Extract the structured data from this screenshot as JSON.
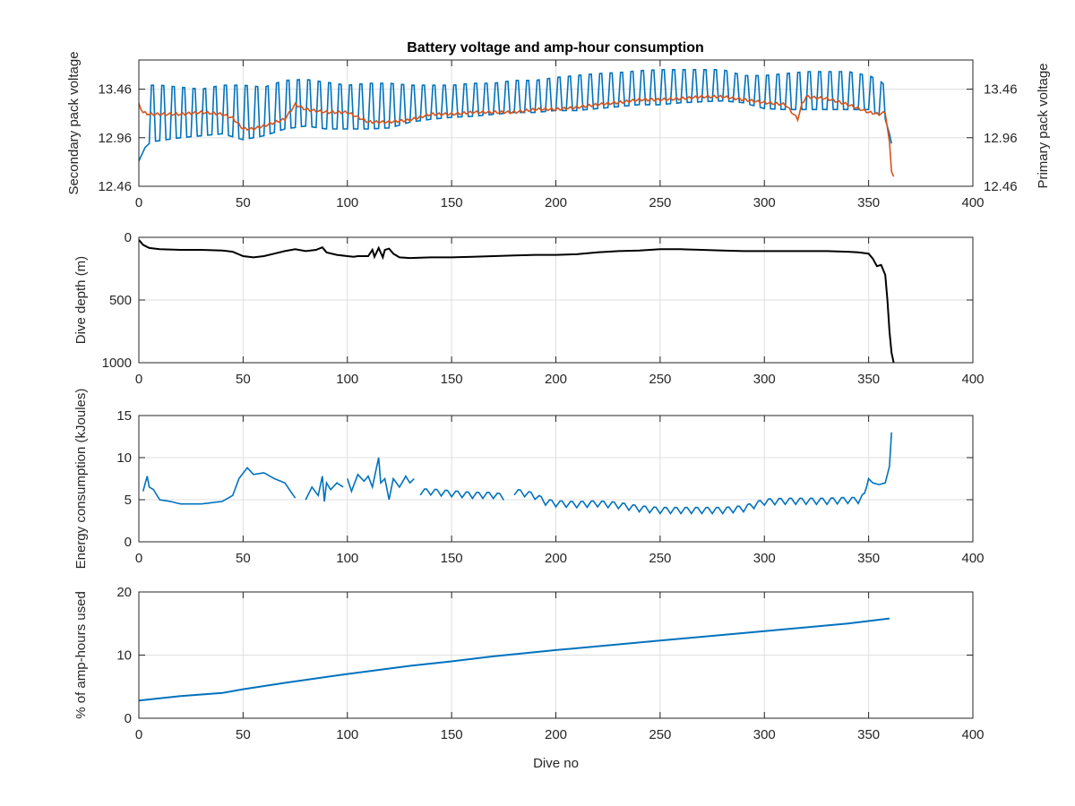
{
  "figure": {
    "title": "Battery voltage and amp-hour consumption"
  },
  "colors": {
    "secondary": "#0072BD",
    "primary": "#D95319",
    "depth": "#000000",
    "energy": "#0072BD",
    "amphours": "#0072BD",
    "grid": "#DFDFDF",
    "axis": "#262626"
  },
  "chart_data": [
    {
      "type": "line",
      "name": "voltage",
      "title": "Battery voltage and amp-hour consumption",
      "xlabel": "",
      "ylabel": "Secondary pack voltage",
      "ylabel_right": "Primary pack voltage",
      "xlim": [
        0,
        400
      ],
      "ylim": [
        12.46,
        13.76
      ],
      "ylim_right": [
        12.46,
        13.76
      ],
      "xticks": [
        0,
        50,
        100,
        150,
        200,
        250,
        300,
        350,
        400
      ],
      "xtick_labels": [
        "0",
        "50",
        "100",
        "150",
        "200",
        "250",
        "300",
        "350",
        "400"
      ],
      "yticks": [
        12.46,
        12.96,
        13.46
      ],
      "ytick_labels": [
        "12.46",
        "12.96",
        "13.46"
      ],
      "yticks_right": [
        12.46,
        12.96,
        13.46
      ],
      "ytick_labels_right": [
        "12.46",
        "12.96",
        "13.46"
      ],
      "grid": true,
      "series": [
        {
          "axis": "left",
          "color": "#0072BD",
          "x": [
            0,
            3,
            6,
            10,
            20,
            30,
            40,
            50,
            60,
            70,
            80,
            90,
            100,
            110,
            120,
            130,
            140,
            150,
            160,
            170,
            180,
            190,
            200,
            210,
            220,
            230,
            240,
            250,
            260,
            270,
            280,
            290,
            300,
            310,
            320,
            330,
            340,
            350,
            355,
            358,
            360,
            361
          ],
          "baseline": [
            12.72,
            12.86,
            12.92,
            12.93,
            12.96,
            12.98,
            13.0,
            12.94,
            12.98,
            13.05,
            13.08,
            13.05,
            13.05,
            13.05,
            13.06,
            13.12,
            13.15,
            13.17,
            13.18,
            13.2,
            13.22,
            13.22,
            13.24,
            13.24,
            13.26,
            13.28,
            13.3,
            13.3,
            13.32,
            13.33,
            13.34,
            13.32,
            13.26,
            13.25,
            13.25,
            13.25,
            13.25,
            13.25,
            13.2,
            13.15,
            13.0,
            12.9
          ],
          "spike_high": [
            13.46,
            13.5,
            13.5,
            13.5,
            13.48,
            13.46,
            13.5,
            13.5,
            13.48,
            13.55,
            13.56,
            13.53,
            13.5,
            13.52,
            13.52,
            13.5,
            13.5,
            13.5,
            13.52,
            13.52,
            13.55,
            13.55,
            13.58,
            13.6,
            13.62,
            13.63,
            13.65,
            13.66,
            13.66,
            13.66,
            13.66,
            13.6,
            13.6,
            13.62,
            13.64,
            13.64,
            13.64,
            13.6,
            13.55,
            13.5,
            13.2,
            12.9
          ],
          "spike_period": 5
        },
        {
          "axis": "right",
          "color": "#D95319",
          "x": [
            0,
            2,
            5,
            10,
            20,
            30,
            40,
            45,
            50,
            55,
            60,
            70,
            75,
            80,
            90,
            100,
            110,
            120,
            130,
            140,
            150,
            160,
            170,
            180,
            190,
            200,
            210,
            220,
            230,
            240,
            250,
            260,
            270,
            280,
            290,
            300,
            310,
            316,
            318,
            320,
            330,
            340,
            350,
            355,
            358,
            360,
            361,
            362
          ],
          "y": [
            13.3,
            13.22,
            13.2,
            13.2,
            13.2,
            13.22,
            13.2,
            13.16,
            13.05,
            13.05,
            13.08,
            13.15,
            13.3,
            13.25,
            13.22,
            13.22,
            13.12,
            13.12,
            13.14,
            13.2,
            13.2,
            13.22,
            13.22,
            13.22,
            13.25,
            13.25,
            13.27,
            13.3,
            13.32,
            13.35,
            13.35,
            13.36,
            13.38,
            13.38,
            13.35,
            13.32,
            13.3,
            13.15,
            13.3,
            13.38,
            13.36,
            13.3,
            13.22,
            13.2,
            13.22,
            12.9,
            12.62,
            12.56
          ]
        }
      ]
    },
    {
      "type": "line",
      "name": "depth",
      "xlabel": "",
      "ylabel": "Dive depth (m)",
      "xlim": [
        0,
        400
      ],
      "ylim": [
        0,
        1000
      ],
      "y_reversed": true,
      "xticks": [
        0,
        50,
        100,
        150,
        200,
        250,
        300,
        350,
        400
      ],
      "xtick_labels": [
        "0",
        "50",
        "100",
        "150",
        "200",
        "250",
        "300",
        "350",
        "400"
      ],
      "yticks": [
        0,
        500,
        1000
      ],
      "ytick_labels": [
        "0",
        "500",
        "1000"
      ],
      "grid": true,
      "series": [
        {
          "color": "#000000",
          "x": [
            0,
            2,
            5,
            10,
            20,
            30,
            40,
            45,
            50,
            55,
            60,
            65,
            70,
            75,
            80,
            85,
            88,
            90,
            95,
            100,
            103,
            105,
            110,
            112,
            113,
            115,
            117,
            118,
            120,
            122,
            125,
            130,
            140,
            150,
            160,
            170,
            180,
            190,
            200,
            210,
            220,
            230,
            240,
            250,
            260,
            270,
            280,
            290,
            300,
            310,
            320,
            330,
            340,
            345,
            350,
            352,
            354,
            356,
            358,
            359,
            360,
            361,
            362
          ],
          "y": [
            20,
            60,
            85,
            95,
            100,
            100,
            105,
            115,
            150,
            160,
            150,
            130,
            110,
            95,
            110,
            100,
            80,
            120,
            140,
            150,
            155,
            150,
            150,
            100,
            155,
            85,
            160,
            100,
            90,
            130,
            160,
            165,
            160,
            160,
            155,
            150,
            145,
            140,
            140,
            135,
            120,
            110,
            105,
            95,
            95,
            100,
            105,
            110,
            110,
            110,
            110,
            110,
            115,
            120,
            130,
            170,
            230,
            220,
            300,
            500,
            750,
            920,
            1000
          ]
        }
      ]
    },
    {
      "type": "line",
      "name": "energy",
      "xlabel": "",
      "ylabel": "Energy consumption (kJoules)",
      "xlim": [
        0,
        400
      ],
      "ylim": [
        0,
        15
      ],
      "xticks": [
        0,
        50,
        100,
        150,
        200,
        250,
        300,
        350,
        400
      ],
      "xtick_labels": [
        "0",
        "50",
        "100",
        "150",
        "200",
        "250",
        "300",
        "350",
        "400"
      ],
      "yticks": [
        0,
        5,
        10,
        15
      ],
      "ytick_labels": [
        "0",
        "5",
        "10",
        "15"
      ],
      "grid": true,
      "segments": [
        {
          "x": [
            2,
            4,
            5,
            7,
            10,
            15,
            20,
            30,
            40,
            45,
            48,
            52,
            55,
            60,
            65,
            70,
            75
          ],
          "y": [
            6.0,
            7.8,
            6.5,
            6.2,
            5.0,
            4.8,
            4.5,
            4.5,
            4.8,
            5.5,
            7.5,
            8.8,
            8.0,
            8.2,
            7.5,
            7.0,
            5.2
          ]
        },
        {
          "x": [
            80,
            83,
            86,
            88,
            89,
            90,
            92,
            95,
            98
          ],
          "y": [
            5.0,
            6.5,
            5.5,
            7.8,
            4.8,
            7.0,
            6.2,
            7.0,
            6.5
          ]
        },
        {
          "x": [
            100,
            102,
            105,
            108,
            110,
            112,
            115,
            116,
            118,
            120,
            122,
            125,
            128,
            130,
            132
          ],
          "y": [
            7.5,
            6.0,
            8.0,
            7.2,
            7.8,
            6.5,
            10.0,
            7.0,
            7.5,
            5.0,
            7.5,
            6.5,
            7.8,
            7.0,
            7.5
          ]
        },
        {
          "x": [
            135,
            140,
            150,
            160,
            170,
            175
          ],
          "y": [
            6.0,
            6.0,
            5.8,
            5.6,
            5.6,
            5.4
          ]
        },
        {
          "x": [
            180,
            185,
            190,
            195,
            200,
            210,
            220,
            230,
            240,
            250,
            260,
            270,
            280,
            290,
            300,
            310,
            320,
            330,
            340,
            345,
            348,
            350,
            352,
            355,
            358,
            360,
            361
          ],
          "y": [
            6.0,
            5.8,
            5.5,
            4.8,
            4.6,
            4.5,
            4.6,
            4.4,
            4.0,
            3.8,
            3.8,
            3.8,
            3.8,
            4.0,
            4.8,
            4.9,
            4.9,
            4.9,
            5.0,
            5.0,
            5.5,
            7.5,
            7.0,
            6.8,
            7.0,
            9.0,
            13.0
          ]
        }
      ],
      "ripple": {
        "period": 5,
        "amplitude": 0.45,
        "x_range": [
          135,
          348
        ]
      },
      "series": [
        {
          "color": "#0072BD"
        }
      ]
    },
    {
      "type": "line",
      "name": "amphours",
      "xlabel": "Dive no",
      "ylabel": "% of amp-hours used",
      "xlim": [
        0,
        400
      ],
      "ylim": [
        0,
        20
      ],
      "xticks": [
        0,
        50,
        100,
        150,
        200,
        250,
        300,
        350,
        400
      ],
      "xtick_labels": [
        "0",
        "50",
        "100",
        "150",
        "200",
        "250",
        "300",
        "350",
        "400"
      ],
      "yticks": [
        0,
        10,
        20
      ],
      "ytick_labels": [
        "0",
        "10",
        "20"
      ],
      "grid": true,
      "series": [
        {
          "color": "#0072BD",
          "x": [
            0,
            20,
            40,
            50,
            70,
            100,
            130,
            150,
            170,
            200,
            250,
            300,
            340,
            360
          ],
          "y": [
            2.8,
            3.5,
            4.0,
            4.6,
            5.6,
            7.0,
            8.3,
            9.0,
            9.8,
            10.8,
            12.3,
            13.8,
            15.0,
            15.8
          ]
        }
      ]
    }
  ]
}
